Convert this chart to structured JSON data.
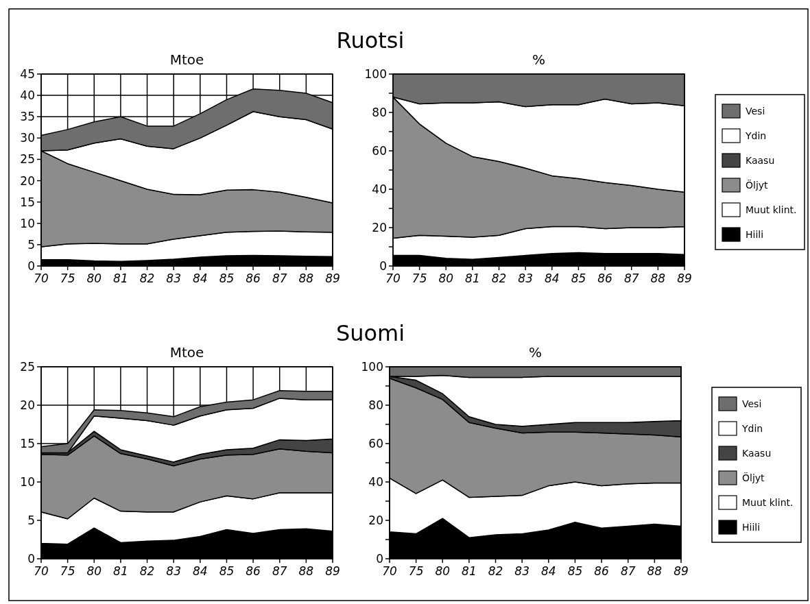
{
  "chart_data": [
    {
      "type": "area",
      "stacked": true,
      "title": "Ruotsi",
      "subtitle": "Mtoe",
      "categories": [
        "70",
        "75",
        "80",
        "81",
        "82",
        "83",
        "84",
        "85",
        "86",
        "87",
        "88",
        "89"
      ],
      "ylim": [
        0,
        45
      ],
      "yticks": [
        0,
        5,
        10,
        15,
        20,
        25,
        30,
        35,
        40,
        45
      ],
      "grid": true,
      "legend": false,
      "series": [
        {
          "color": "#000000",
          "values": [
            1.5,
            1.5,
            1.2,
            1.1,
            1.3,
            1.6,
            2.1,
            2.4,
            2.5,
            2.4,
            2.3,
            2.2
          ]
        },
        {
          "color": "#ffffff",
          "values": [
            3.0,
            3.7,
            4.1,
            4.1,
            3.9,
            4.7,
            5.0,
            5.5,
            5.6,
            5.8,
            5.7,
            5.7
          ]
        },
        {
          "color": "#8c8c8c",
          "values": [
            22.5,
            18.8,
            16.7,
            14.8,
            12.8,
            10.5,
            9.6,
            9.9,
            9.8,
            9.1,
            8.1,
            6.9
          ]
        },
        {
          "color": "#ffffff",
          "values": [
            0,
            3.2,
            6.8,
            9.8,
            10.1,
            10.7,
            13.3,
            15.2,
            18.3,
            17.7,
            18.2,
            17.3
          ]
        },
        {
          "color": "#6e6e6e",
          "values": [
            3.6,
            4.8,
            5.0,
            5.2,
            4.7,
            5.3,
            5.7,
            6.0,
            5.3,
            6.2,
            6.2,
            6.2
          ]
        }
      ]
    },
    {
      "type": "area",
      "stacked": true,
      "subtitle": "%",
      "categories": [
        "70",
        "75",
        "80",
        "81",
        "82",
        "83",
        "84",
        "85",
        "86",
        "87",
        "88",
        "89"
      ],
      "ylim": [
        0,
        100
      ],
      "yticks": [
        0,
        {
          "value": 10,
          "label": null
        },
        20,
        {
          "value": 30,
          "label": null
        },
        40,
        {
          "value": 50,
          "label": null
        },
        60,
        {
          "value": 70,
          "label": null
        },
        80,
        {
          "value": 90,
          "label": null
        },
        100
      ],
      "grid": false,
      "legend": "right",
      "series": [
        {
          "name": "Hiili",
          "color": "#000000",
          "values": [
            5.5,
            5.5,
            4,
            3.5,
            4.5,
            5.5,
            6.5,
            7,
            6.5,
            6.5,
            6.5,
            6
          ]
        },
        {
          "name": "Muut klint.",
          "color": "#ffffff",
          "values": [
            9,
            10.5,
            11.5,
            11.5,
            11.5,
            14,
            14,
            13.5,
            13,
            13.5,
            13.5,
            14.5
          ]
        },
        {
          "name": "Öljyt",
          "color": "#8c8c8c",
          "values": [
            73.5,
            58,
            48.5,
            42,
            38.5,
            31.5,
            26.5,
            25,
            24,
            22,
            20,
            18
          ]
        },
        {
          "name": "Kaasu",
          "color": "#444444",
          "values": [
            null,
            null,
            null,
            null,
            null,
            null,
            null,
            null,
            null,
            null,
            null,
            null
          ]
        },
        {
          "name": "Ydin",
          "color": "#ffffff",
          "values": [
            0,
            10.5,
            21,
            28,
            31,
            32,
            37,
            38.5,
            43.5,
            42.5,
            45,
            45
          ]
        },
        {
          "name": "Vesi",
          "color": "#6e6e6e",
          "values": [
            12,
            15.5,
            15,
            15,
            14.5,
            17,
            16,
            16,
            13,
            15.5,
            15,
            16.5
          ]
        }
      ]
    },
    {
      "type": "area",
      "stacked": true,
      "title": "Suomi",
      "subtitle": "Mtoe",
      "categories": [
        "70",
        "75",
        "80",
        "81",
        "82",
        "83",
        "84",
        "85",
        "86",
        "87",
        "88",
        "89"
      ],
      "ylim": [
        0,
        25
      ],
      "yticks": [
        0,
        5,
        10,
        15,
        20,
        25
      ],
      "grid": true,
      "legend": false,
      "series": [
        {
          "color": "#000000",
          "values": [
            2.0,
            1.9,
            4.0,
            2.1,
            2.3,
            2.4,
            2.9,
            3.8,
            3.3,
            3.8,
            3.9,
            3.6
          ]
        },
        {
          "color": "#ffffff",
          "values": [
            4.1,
            3.3,
            3.9,
            4.1,
            3.8,
            3.7,
            4.5,
            4.4,
            4.5,
            4.8,
            4.7,
            5.0
          ]
        },
        {
          "color": "#8c8c8c",
          "values": [
            7.5,
            8.3,
            8.1,
            7.5,
            6.9,
            6.0,
            5.6,
            5.3,
            5.8,
            5.7,
            5.4,
            5.2
          ]
        },
        {
          "color": "#444444",
          "values": [
            0.2,
            0.3,
            0.6,
            0.5,
            0.4,
            0.5,
            0.6,
            0.7,
            0.8,
            1.2,
            1.4,
            1.8
          ]
        },
        {
          "color": "#ffffff",
          "values": [
            0,
            0,
            2.0,
            4.1,
            4.6,
            4.8,
            5.0,
            5.2,
            5.2,
            5.4,
            5.3,
            5.1
          ]
        },
        {
          "color": "#6e6e6e",
          "values": [
            0.8,
            1.2,
            0.8,
            1.0,
            1.0,
            1.1,
            1.2,
            1.0,
            1.1,
            1.0,
            1.1,
            1.1
          ]
        }
      ]
    },
    {
      "type": "area",
      "stacked": true,
      "subtitle": "%",
      "categories": [
        "70",
        "75",
        "80",
        "81",
        "82",
        "83",
        "84",
        "85",
        "86",
        "87",
        "88",
        "89"
      ],
      "ylim": [
        0,
        100
      ],
      "yticks": [
        0,
        {
          "value": 10,
          "label": null
        },
        20,
        {
          "value": 30,
          "label": null
        },
        40,
        {
          "value": 50,
          "label": null
        },
        60,
        {
          "value": 70,
          "label": null
        },
        80,
        {
          "value": 90,
          "label": null
        },
        100
      ],
      "grid": false,
      "legend": "right",
      "series": [
        {
          "name": "Hiili",
          "color": "#000000",
          "values": [
            14,
            13,
            21,
            11,
            12.5,
            13,
            15,
            19,
            16,
            17,
            18,
            17
          ]
        },
        {
          "name": "Muut klint.",
          "color": "#ffffff",
          "values": [
            28,
            21,
            20,
            21,
            20,
            20,
            23,
            21,
            22,
            22,
            21.5,
            22.5
          ]
        },
        {
          "name": "Öljyt",
          "color": "#8c8c8c",
          "values": [
            52,
            55,
            42,
            39,
            35.5,
            32.5,
            28,
            26,
            27.5,
            26,
            25,
            24
          ]
        },
        {
          "name": "Kaasu",
          "color": "#444444",
          "values": [
            1,
            4,
            3,
            3,
            2,
            3.5,
            4,
            5,
            5.5,
            6,
            7,
            8.5
          ]
        },
        {
          "name": "Ydin",
          "color": "#ffffff",
          "values": [
            0,
            2,
            9.5,
            20.5,
            24.5,
            25.5,
            25,
            24,
            24,
            24,
            23.5,
            23
          ]
        },
        {
          "name": "Vesi",
          "color": "#6e6e6e",
          "values": [
            5,
            5,
            4.5,
            5.5,
            5.5,
            5.5,
            5,
            5,
            5,
            5,
            5,
            5
          ]
        }
      ]
    }
  ]
}
